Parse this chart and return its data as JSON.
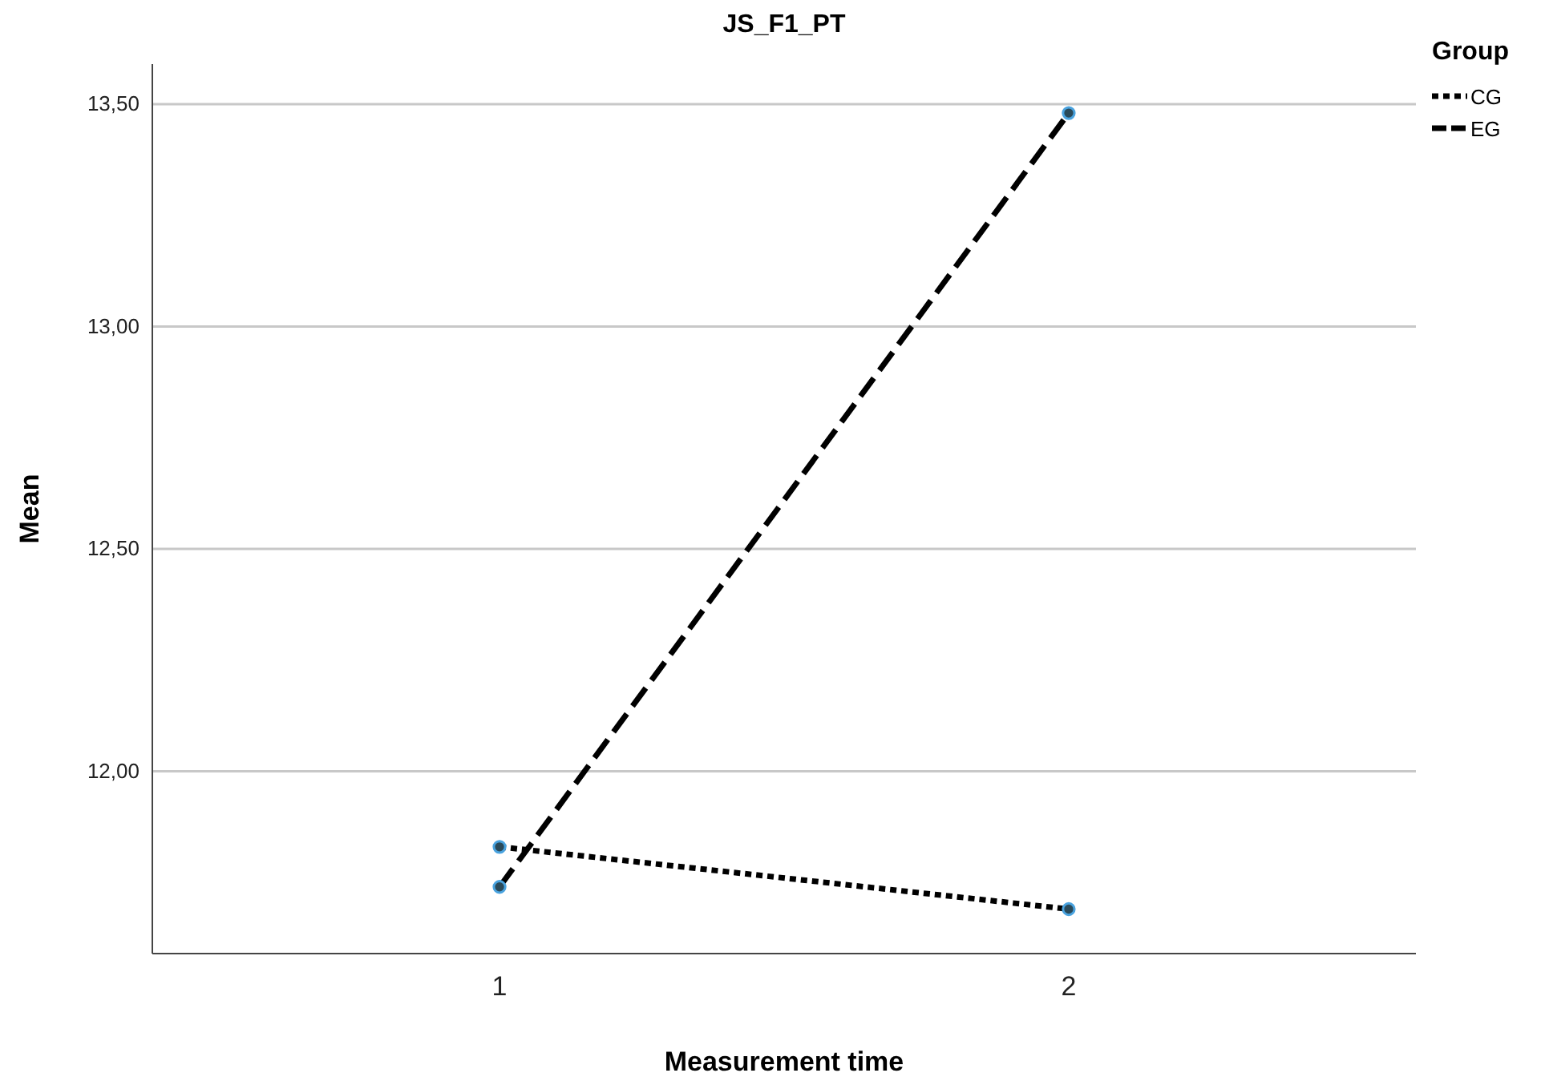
{
  "chart_data": {
    "type": "line",
    "title": "JS_F1_PT",
    "xlabel": "Measurement time",
    "ylabel": "Mean",
    "legend_title": "Group",
    "x": [
      1,
      2
    ],
    "xlim": [
      0.39,
      2.61
    ],
    "xticks": [
      1,
      2
    ],
    "ylim": [
      11.59,
      13.59
    ],
    "yticks": [
      {
        "value": 12,
        "label": "12,00"
      },
      {
        "value": 12.5,
        "label": "12,50"
      },
      {
        "value": 13,
        "label": "13,00"
      },
      {
        "value": 13.5,
        "label": "13,50"
      }
    ],
    "grid": "y",
    "legend": "top right",
    "marker": "circle",
    "series": [
      {
        "name": "CG",
        "color": "#000000",
        "line_style": "dotted",
        "values": [
          11.83,
          11.69
        ]
      },
      {
        "name": "EG",
        "color": "#000000",
        "line_style": "dashed",
        "values": [
          11.74,
          13.48
        ]
      }
    ]
  }
}
